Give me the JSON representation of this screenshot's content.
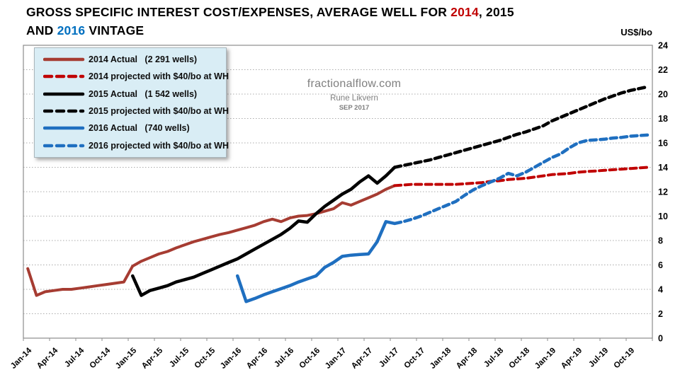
{
  "title": {
    "lines": [
      [
        {
          "text": "GROSS SPECIFIC INTEREST COST/EXPENSES, AVERAGE WELL FOR ",
          "color": "#000000"
        },
        {
          "text": "2014",
          "color": "#C00000"
        },
        {
          "text": ", 2015",
          "color": "#000000"
        }
      ],
      [
        {
          "text": "AND ",
          "color": "#000000"
        },
        {
          "text": "2016",
          "color": "#0070C0"
        },
        {
          "text": " VINTAGE",
          "color": "#000000"
        }
      ]
    ]
  },
  "watermark": {
    "site": "fractionalflow.com",
    "author": "Rune Likvern",
    "date": "SEP 2017"
  },
  "chart_data": {
    "type": "line",
    "unit_label": "US$/bo",
    "ylim": [
      0,
      24
    ],
    "ytick_step": 2,
    "grid": "horizontal-dotted",
    "legend_position": "top-left-inside",
    "total_months": 72,
    "months_per_tick": 3,
    "x_tick_labels": [
      "Jan-14",
      "Apr-14",
      "Jul-14",
      "Oct-14",
      "Jan-15",
      "Apr-15",
      "Jul-15",
      "Oct-15",
      "Jan-16",
      "Apr-16",
      "Jul-16",
      "Oct-16",
      "Jan-17",
      "Apr-17",
      "Jul-17",
      "Oct-17",
      "Jan-18",
      "Apr-18",
      "Jul-18",
      "Oct-18",
      "Jan-19",
      "Apr-19",
      "Jul-19",
      "Oct-19"
    ],
    "series": [
      {
        "name": "2014 Actual   (2 291 wells)",
        "color": "#A63C32",
        "dash": false,
        "width": 4,
        "start_month": 0,
        "values": [
          5.7,
          3.5,
          3.8,
          3.9,
          4.0,
          4.0,
          4.1,
          4.2,
          4.3,
          4.4,
          4.5,
          4.6,
          5.9,
          6.3,
          6.6,
          6.9,
          7.1,
          7.4,
          7.65,
          7.9,
          8.1,
          8.3,
          8.5,
          8.65,
          8.85,
          9.05,
          9.25,
          9.55,
          9.75,
          9.55,
          9.85,
          10.0,
          10.05,
          10.2,
          10.4,
          10.6,
          11.1,
          10.9,
          11.2,
          11.5,
          11.8,
          12.2,
          12.5
        ]
      },
      {
        "name": "2014 projected with $40/bo at WH",
        "color": "#C00000",
        "dash": true,
        "width": 4,
        "start_month": 42,
        "values": [
          12.5,
          12.55,
          12.6,
          12.6,
          12.6,
          12.6,
          12.6,
          12.6,
          12.65,
          12.7,
          12.75,
          12.85,
          12.9,
          13.0,
          13.05,
          13.1,
          13.2,
          13.3,
          13.4,
          13.45,
          13.5,
          13.6,
          13.65,
          13.7,
          13.75,
          13.8,
          13.85,
          13.9,
          13.95,
          14.0
        ]
      },
      {
        "name": "2015 Actual   (1 542 wells)",
        "color": "#000000",
        "dash": false,
        "width": 4.5,
        "start_month": 12,
        "values": [
          5.1,
          3.5,
          3.9,
          4.1,
          4.3,
          4.6,
          4.8,
          5.0,
          5.3,
          5.6,
          5.9,
          6.2,
          6.5,
          6.9,
          7.3,
          7.7,
          8.1,
          8.5,
          9.0,
          9.6,
          9.5,
          10.2,
          10.8,
          11.3,
          11.8,
          12.2,
          12.8,
          13.3,
          12.7,
          13.3,
          14.0
        ]
      },
      {
        "name": "2015 projected with $40/bo at WH",
        "color": "#000000",
        "dash": true,
        "width": 4.5,
        "start_month": 42,
        "values": [
          14.0,
          14.15,
          14.3,
          14.45,
          14.6,
          14.8,
          15.0,
          15.2,
          15.4,
          15.6,
          15.8,
          16.0,
          16.2,
          16.45,
          16.7,
          16.9,
          17.15,
          17.4,
          17.8,
          18.1,
          18.4,
          18.7,
          19.0,
          19.3,
          19.6,
          19.85,
          20.1,
          20.3,
          20.45,
          20.6
        ]
      },
      {
        "name": "2016 Actual   (740 wells)",
        "color": "#1F6FC0",
        "dash": false,
        "width": 4.5,
        "start_month": 24,
        "values": [
          5.1,
          3.0,
          3.25,
          3.55,
          3.8,
          4.05,
          4.3,
          4.6,
          4.85,
          5.1,
          5.8,
          6.2,
          6.7,
          6.8,
          6.85,
          6.9,
          7.9,
          9.55,
          9.4
        ]
      },
      {
        "name": "2016 projected with $40/bo at WH",
        "color": "#1F6FC0",
        "dash": true,
        "width": 4.5,
        "start_month": 42,
        "values": [
          9.4,
          9.55,
          9.75,
          10.0,
          10.3,
          10.6,
          10.9,
          11.2,
          11.7,
          12.15,
          12.5,
          12.8,
          13.1,
          13.5,
          13.3,
          13.6,
          14.0,
          14.4,
          14.8,
          15.1,
          15.6,
          16.0,
          16.2,
          16.25,
          16.3,
          16.4,
          16.45,
          16.55,
          16.6,
          16.65
        ]
      }
    ]
  }
}
